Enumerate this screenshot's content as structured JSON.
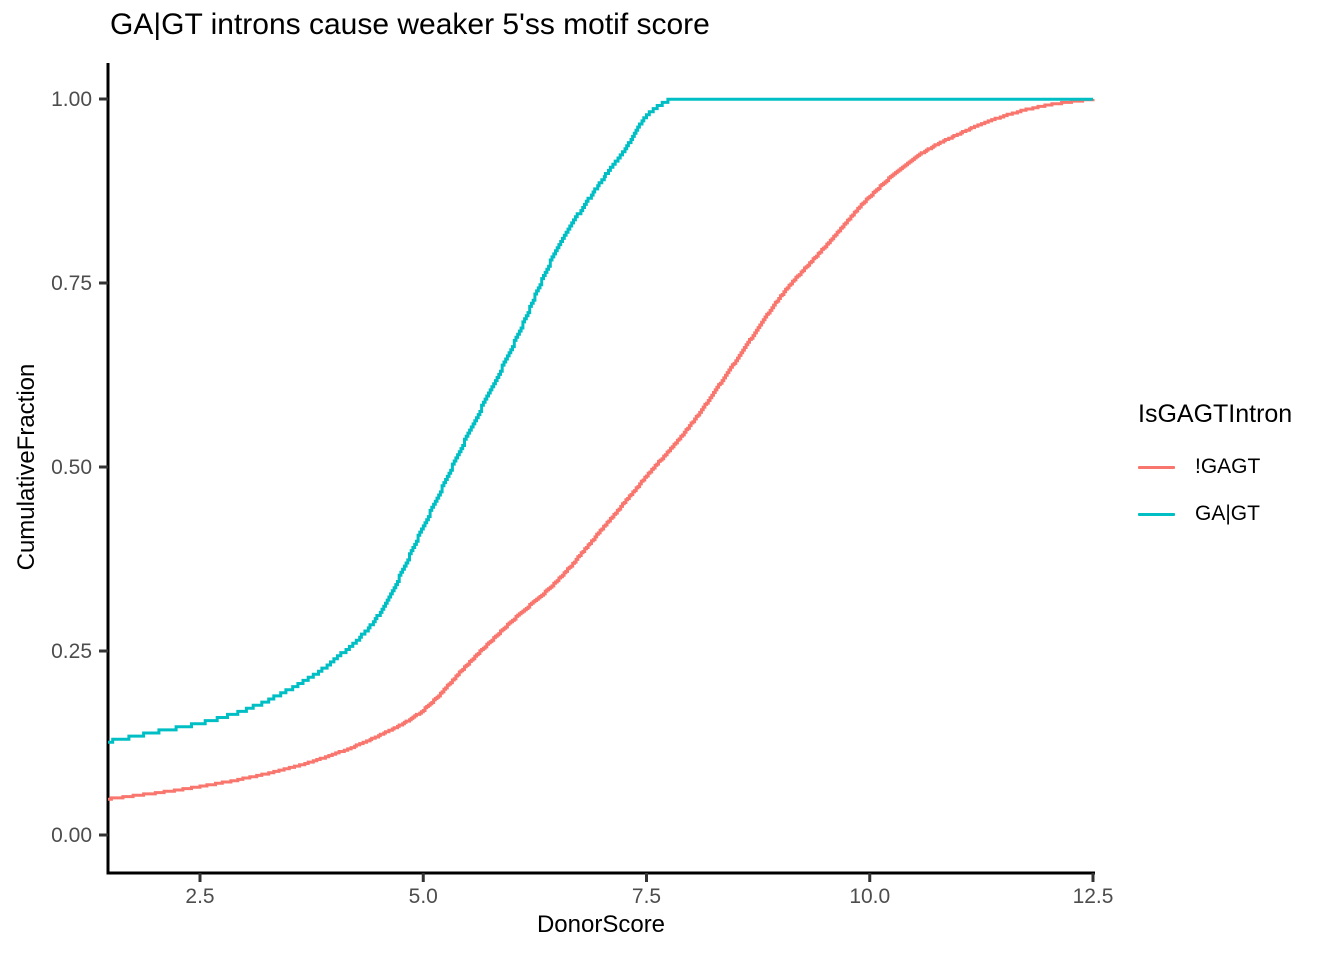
{
  "title": "GA|GT introns cause weaker 5'ss motif score",
  "chart_data": {
    "type": "line",
    "subtype": "ecdf-step",
    "title": "GA|GT introns cause weaker 5'ss motif score",
    "xlabel": "DonorScore",
    "ylabel": "CumulativeFraction",
    "xlim": [
      1.47,
      12.52
    ],
    "ylim": [
      -0.05,
      1.05
    ],
    "grid": "off",
    "axis_color": "#000000",
    "tick_color": "#333333",
    "tick_label_color": "#4d4d4d",
    "x_ticks": [
      2.5,
      5.0,
      7.5,
      10.0,
      12.5
    ],
    "x_tick_labels": [
      "2.5",
      "5.0",
      "7.5",
      "10.0",
      "12.5"
    ],
    "y_ticks": [
      0,
      0.25,
      0.5,
      0.75,
      1.0
    ],
    "y_tick_labels": [
      "0.00",
      "0.25",
      "0.50",
      "0.75",
      "1.00"
    ],
    "legend": {
      "title": "IsGAGTIntron",
      "position": "right"
    },
    "series": [
      {
        "name": "!GAGT",
        "slug": "not-gagt",
        "color": "#F8766D",
        "x": [
          1.47,
          2.0,
          2.5,
          3.0,
          3.5,
          4.0,
          4.5,
          5.0,
          5.5,
          6.0,
          6.5,
          7.0,
          7.5,
          8.0,
          8.5,
          9.0,
          9.5,
          10.0,
          10.5,
          11.0,
          11.5,
          12.0,
          12.5
        ],
        "y": [
          0.049,
          0.057,
          0.066,
          0.077,
          0.091,
          0.11,
          0.135,
          0.17,
          0.233,
          0.292,
          0.346,
          0.416,
          0.488,
          0.559,
          0.645,
          0.732,
          0.8,
          0.868,
          0.92,
          0.953,
          0.977,
          0.992,
          1.0
        ]
      },
      {
        "name": "GA|GT",
        "slug": "ga-gt",
        "color": "#00BFC4",
        "x": [
          1.47,
          2.0,
          2.5,
          3.0,
          3.5,
          4.0,
          4.5,
          5.0,
          5.5,
          6.0,
          6.5,
          7.0,
          7.25,
          7.5,
          7.78,
          8.0,
          8.5,
          9.0,
          9.5,
          10.0,
          10.5,
          11.0,
          11.5,
          12.0,
          12.5
        ],
        "y": [
          0.127,
          0.14,
          0.152,
          0.17,
          0.198,
          0.238,
          0.3,
          0.42,
          0.545,
          0.665,
          0.798,
          0.89,
          0.93,
          0.977,
          1.0,
          1.0,
          1.0,
          1.0,
          1.0,
          1.0,
          1.0,
          1.0,
          1.0,
          1.0,
          1.0
        ]
      }
    ]
  }
}
